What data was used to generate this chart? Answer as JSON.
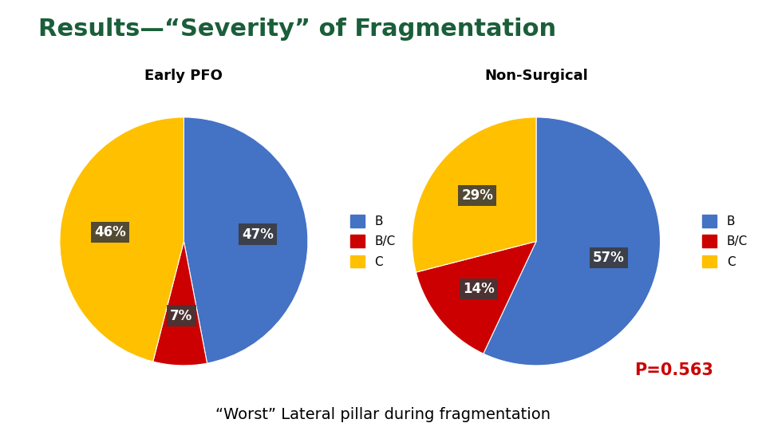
{
  "title": "Results—“Severity” of Fragmentation",
  "title_color": "#1a5e3a",
  "title_fontsize": 22,
  "subtitle": "“Worst” Lateral pillar during fragmentation",
  "subtitle_fontsize": 14,
  "p_value": "P=0.563",
  "p_value_color": "#cc0000",
  "p_value_fontsize": 15,
  "chart1_title": "Early PFO",
  "chart2_title": "Non-Surgical",
  "chart1_values": [
    47,
    7,
    46
  ],
  "chart2_values": [
    57,
    14,
    29
  ],
  "labels": [
    "B",
    "B/C",
    "C"
  ],
  "colors": [
    "#4472c4",
    "#cc0000",
    "#ffc000"
  ],
  "chart_title_fontsize": 13,
  "legend_fontsize": 11,
  "wedge_label_color": "#ffffff",
  "wedge_label_fontsize": 12,
  "label_box_color": "#3a3a3a",
  "background_color": "#ffffff",
  "chart1_startangle": 90,
  "chart2_startangle": 90
}
